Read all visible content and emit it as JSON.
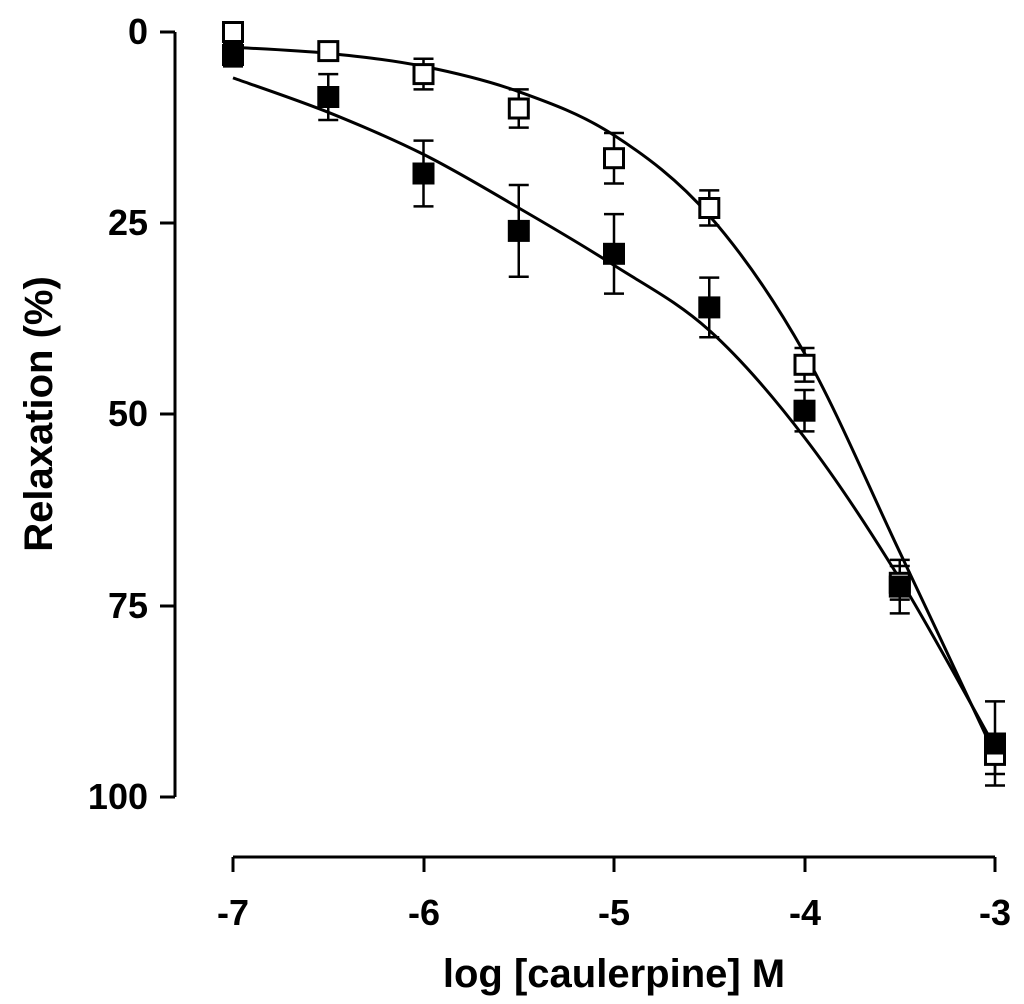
{
  "chart_data": {
    "type": "scatter",
    "title": "",
    "xlabel": "log [caulerpine] M",
    "ylabel": "Relaxation (%)",
    "xlim": [
      -7,
      -3
    ],
    "ylim": [
      0,
      100
    ],
    "y_inverted": true,
    "x_ticks": [
      -7,
      -6,
      -5,
      -4,
      -3
    ],
    "x_tick_labels": [
      "-7",
      "-6",
      "-5",
      "-4",
      "-3"
    ],
    "y_ticks": [
      0,
      25,
      50,
      75,
      100
    ],
    "y_tick_labels": [
      "0",
      "25",
      "50",
      "75",
      "100"
    ],
    "grid": false,
    "legend": "none",
    "x": [
      -7,
      -6.5,
      -6,
      -5.5,
      -5,
      -4.5,
      -4,
      -3.5,
      -3
    ],
    "series": [
      {
        "name": "open squares",
        "marker": "square-open",
        "values": [
          0,
          2.5,
          5.5,
          10,
          16.5,
          23,
          43.5,
          72,
          94.5
        ],
        "error": [
          0,
          0,
          2,
          2.5,
          3.3,
          2.3,
          2.2,
          2.2,
          2.5
        ],
        "fit_curve": {
          "x": [
            -7,
            -6.5,
            -6,
            -5.5,
            -5,
            -4.5,
            -4,
            -3.5,
            -3
          ],
          "y": [
            2,
            2.8,
            4.5,
            7.8,
            13.5,
            24,
            42,
            68,
            94.5
          ]
        }
      },
      {
        "name": "filled squares",
        "marker": "square-filled",
        "values": [
          3,
          8.5,
          18.5,
          26,
          29,
          36,
          49.5,
          72.5,
          93
        ],
        "error": [
          1.5,
          3,
          4.3,
          6,
          5.2,
          3.9,
          2.7,
          3.5,
          5.5
        ],
        "fit_curve": {
          "x": [
            -7,
            -6.5,
            -6,
            -5.5,
            -5,
            -4.5,
            -4,
            -3.5,
            -3
          ],
          "y": [
            6,
            10.5,
            16,
            23,
            30.5,
            39,
            53,
            71.5,
            93.5
          ]
        }
      }
    ]
  }
}
